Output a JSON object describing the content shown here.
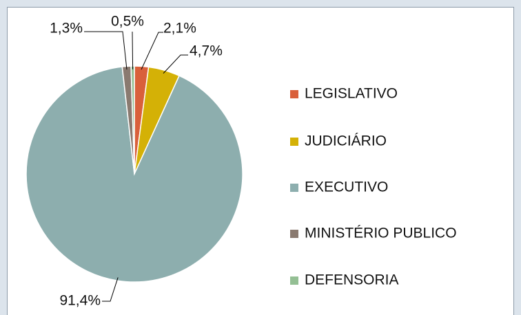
{
  "chart_data": {
    "type": "pie",
    "categories": [
      "LEGISLATIVO",
      "JUDICIÁRIO",
      "EXECUTIVO",
      "MINISTÉRIO PUBLICO",
      "DEFENSORIA"
    ],
    "values": [
      2.1,
      4.7,
      91.4,
      1.3,
      0.5
    ],
    "value_labels": [
      "2,1%",
      "4,7%",
      "91,4%",
      "1,3%",
      "0,5%"
    ],
    "colors": [
      "#d9603b",
      "#d4b106",
      "#8daeae",
      "#8a7a70",
      "#94bf94"
    ],
    "legend": "right"
  }
}
